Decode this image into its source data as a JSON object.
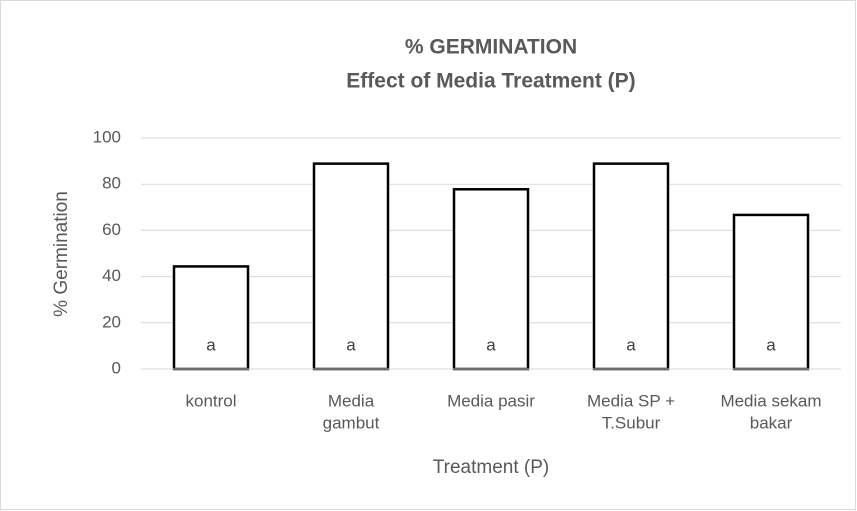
{
  "chart_data": {
    "type": "bar",
    "title": "% GERMINATION",
    "subtitle": "Effect of Media Treatment (P)",
    "x_label": "Treatment (P)",
    "y_label": "% Germination",
    "categories": [
      [
        "kontrol"
      ],
      [
        "Media",
        "gambut"
      ],
      [
        "Media pasir"
      ],
      [
        "Media SP +",
        "T.Subur"
      ],
      [
        "Media sekam",
        "bakar"
      ]
    ],
    "values": [
      44.4,
      88.9,
      77.8,
      88.9,
      66.7
    ],
    "bar_labels": [
      "a",
      "a",
      "a",
      "a",
      "a"
    ],
    "color": "#ffffff",
    "edge_color": "#000000",
    "ylim": [
      0,
      100
    ],
    "yticks": [
      0,
      20,
      40,
      60,
      80,
      100
    ],
    "grid": true
  }
}
